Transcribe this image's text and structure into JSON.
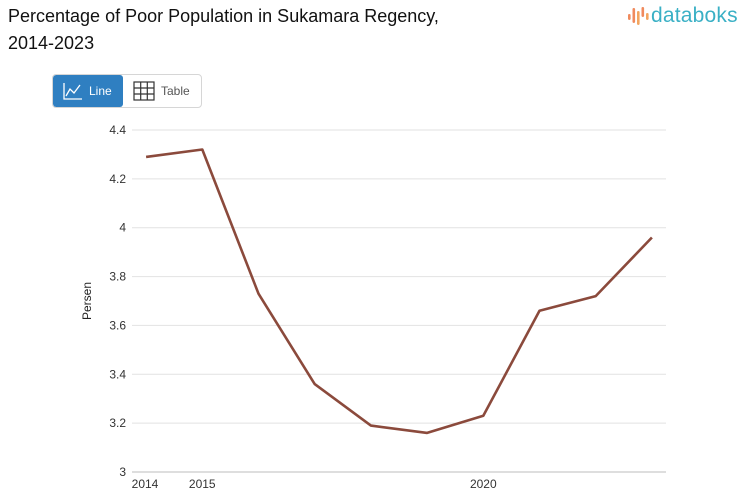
{
  "header": {
    "title_line1": "Percentage of Poor Population in Sukamara Regency,",
    "title_line2": "2014-2023",
    "brand": "databoks"
  },
  "toggle": {
    "line_label": "Line",
    "table_label": "Table"
  },
  "colors": {
    "line": "#8b4a3c",
    "grid": "#e2e2e2",
    "toggle_active": "#2f7fc1",
    "brand_icon": "#f08a5d",
    "brand_text": "#3ab0c5"
  },
  "chart_data": {
    "type": "line",
    "title": "Percentage of Poor Population in Sukamara Regency, 2014-2023",
    "xlabel": "",
    "ylabel": "Persen",
    "x": [
      2014,
      2015,
      2016,
      2017,
      2018,
      2019,
      2020,
      2021,
      2022,
      2023
    ],
    "series": [
      {
        "values": [
          4.29,
          4.32,
          3.73,
          3.36,
          3.19,
          3.16,
          3.23,
          3.66,
          3.72,
          3.96
        ]
      }
    ],
    "ylim": [
      3,
      4.4
    ],
    "yticks": [
      3,
      3.2,
      3.4,
      3.6,
      3.8,
      4,
      4.2,
      4.4
    ],
    "ytick_labels": [
      "3",
      "3.2",
      "3.4",
      "3.6",
      "3.8",
      "4",
      "4.2",
      "4.4"
    ],
    "xtick_labels": [
      "2014",
      "2015",
      "2020"
    ],
    "grid": true,
    "legend": "none"
  }
}
